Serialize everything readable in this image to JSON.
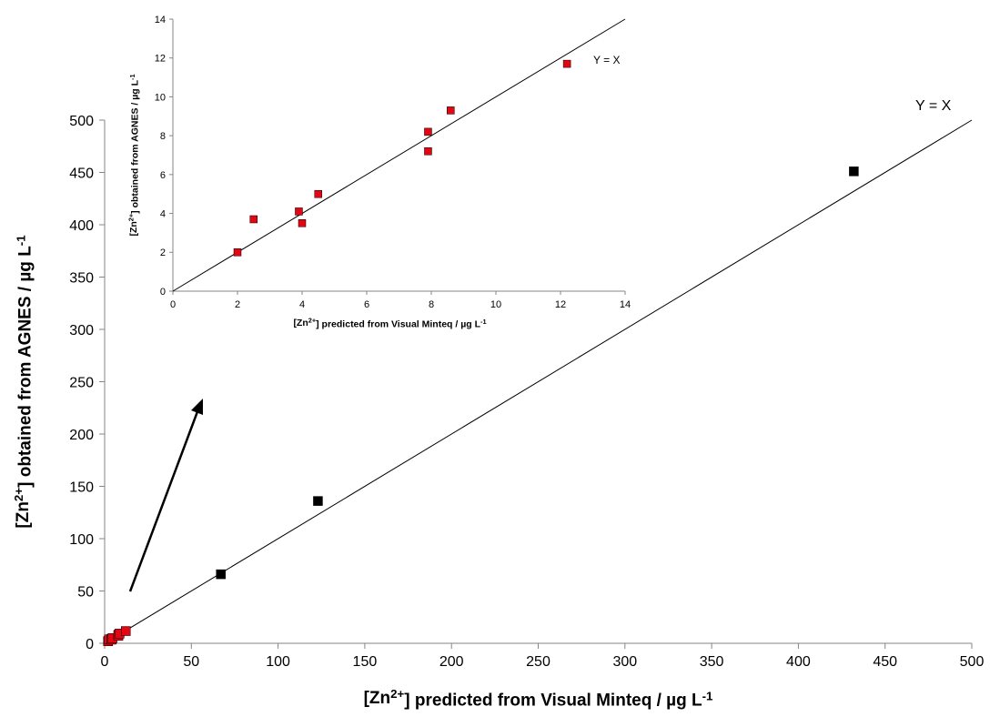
{
  "chart_data": [
    {
      "type": "scatter",
      "role": "main",
      "xlabel": {
        "pre": "[Zn",
        "sup1": "2+",
        "mid": "] predicted from Visual Minteq / µg L",
        "sup2": "-1"
      },
      "ylabel": {
        "pre": "[Zn",
        "sup1": "2+",
        "mid": "] obtained from AGNES / µg L",
        "sup2": "-1"
      },
      "xlim": [
        0,
        500
      ],
      "ylim": [
        0,
        500
      ],
      "xticks": [
        "0",
        "50",
        "100",
        "150",
        "200",
        "250",
        "300",
        "350",
        "400",
        "450",
        "500"
      ],
      "yticks": [
        "0",
        "50",
        "100",
        "150",
        "200",
        "250",
        "300",
        "350",
        "400",
        "450",
        "500"
      ],
      "line_label": "Y = X",
      "series": [
        {
          "color": "#000000",
          "points": [
            [
              2.0,
              2.0
            ],
            [
              67,
              66
            ],
            [
              123,
              136
            ],
            [
              432,
              451
            ]
          ]
        },
        {
          "color": "#e30613",
          "points": [
            [
              2.0,
              2.0
            ],
            [
              2.5,
              3.7
            ],
            [
              3.9,
              4.1
            ],
            [
              4.0,
              3.5
            ],
            [
              4.5,
              5.0
            ],
            [
              7.9,
              8.2
            ],
            [
              7.9,
              7.2
            ],
            [
              8.6,
              9.3
            ],
            [
              12.2,
              11.7
            ]
          ]
        }
      ],
      "grid": false,
      "legend": "none"
    },
    {
      "type": "scatter",
      "role": "inset",
      "xlabel": {
        "pre": "[Zn",
        "sup1": "2+",
        "mid": "] predicted from Visual Minteq / µg L",
        "sup2": "-1"
      },
      "ylabel": {
        "pre": "[Zn",
        "sup1": "2+",
        "mid": "] obtained from AGNES / µg L",
        "sup2": "-1"
      },
      "xlim": [
        0,
        14
      ],
      "ylim": [
        0,
        14
      ],
      "xticks": [
        "0",
        "2",
        "4",
        "6",
        "8",
        "10",
        "12",
        "14"
      ],
      "yticks": [
        "0",
        "2",
        "4",
        "6",
        "8",
        "10",
        "12",
        "14"
      ],
      "line_label": "Y = X",
      "series": [
        {
          "color": "#e30613",
          "points": [
            [
              2.0,
              2.0
            ],
            [
              2.5,
              3.7
            ],
            [
              3.9,
              4.1
            ],
            [
              4.0,
              3.5
            ],
            [
              4.5,
              5.0
            ],
            [
              7.9,
              8.2
            ],
            [
              7.9,
              7.2
            ],
            [
              8.6,
              9.3
            ],
            [
              12.2,
              11.7
            ]
          ]
        }
      ],
      "grid": false,
      "legend": "none"
    }
  ]
}
